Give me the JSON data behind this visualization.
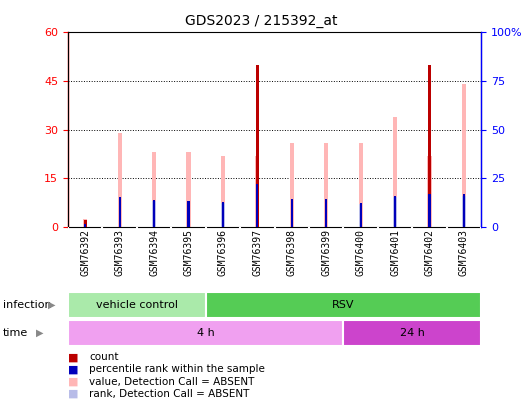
{
  "title": "GDS2023 / 215392_at",
  "samples": [
    "GSM76392",
    "GSM76393",
    "GSM76394",
    "GSM76395",
    "GSM76396",
    "GSM76397",
    "GSM76398",
    "GSM76399",
    "GSM76400",
    "GSM76401",
    "GSM76402",
    "GSM76403"
  ],
  "count_values": [
    2,
    0,
    0,
    0,
    0,
    50,
    0,
    0,
    0,
    0,
    50,
    0
  ],
  "percentile_rank": [
    1.5,
    15.5,
    14,
    13.5,
    13,
    22,
    14.5,
    14.5,
    12,
    16,
    17,
    17
  ],
  "value_absent": [
    2.5,
    29,
    23,
    23,
    22,
    22,
    26,
    26,
    26,
    34,
    22,
    44
  ],
  "rank_absent": [
    0,
    0,
    13.5,
    13,
    12.5,
    0,
    0,
    0,
    11.5,
    15.5,
    0,
    16
  ],
  "ylim_left": [
    0,
    60
  ],
  "ylim_right": [
    0,
    100
  ],
  "yticks_left": [
    0,
    15,
    30,
    45,
    60
  ],
  "yticks_right": [
    0,
    25,
    50,
    75,
    100
  ],
  "infection_groups": [
    {
      "label": "vehicle control",
      "start": 0,
      "end": 4,
      "color": "#aaeaaa"
    },
    {
      "label": "RSV",
      "start": 4,
      "end": 12,
      "color": "#55cc55"
    }
  ],
  "time_groups": [
    {
      "label": "4 h",
      "start": 0,
      "end": 8,
      "color": "#f0a0f0"
    },
    {
      "label": "24 h",
      "start": 8,
      "end": 12,
      "color": "#cc44cc"
    }
  ],
  "color_count": "#bb0000",
  "color_percentile": "#0000bb",
  "color_value_absent": "#ffb6b6",
  "color_rank_absent": "#b8bce8",
  "plot_bg": "#ffffff",
  "xtick_bg": "#d8d8d8",
  "legend_items": [
    {
      "color": "#bb0000",
      "label": "count"
    },
    {
      "color": "#0000bb",
      "label": "percentile rank within the sample"
    },
    {
      "color": "#ffb6b6",
      "label": "value, Detection Call = ABSENT"
    },
    {
      "color": "#b8bce8",
      "label": "rank, Detection Call = ABSENT"
    }
  ]
}
